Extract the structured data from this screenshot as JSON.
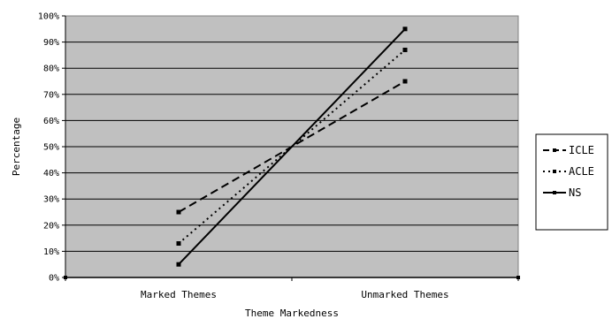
{
  "chart_data": {
    "type": "line",
    "title": "",
    "xlabel": "Theme Markedness",
    "ylabel": "Percentage",
    "categories": [
      "Marked Themes",
      "Unmarked Themes"
    ],
    "y_ticks": [
      "0%",
      "10%",
      "20%",
      "30%",
      "40%",
      "50%",
      "60%",
      "70%",
      "80%",
      "90%",
      "100%"
    ],
    "ylim": [
      0,
      100
    ],
    "grid": true,
    "legend_position": "right",
    "plot_background": "#c0c0c0",
    "series": [
      {
        "name": "ICLE",
        "values": [
          25,
          75
        ],
        "style": "dashed",
        "color": "#000000"
      },
      {
        "name": "ACLE",
        "values": [
          13,
          87
        ],
        "style": "dotted",
        "color": "#000000"
      },
      {
        "name": "NS",
        "values": [
          5,
          95
        ],
        "style": "solid",
        "color": "#000000"
      }
    ]
  }
}
